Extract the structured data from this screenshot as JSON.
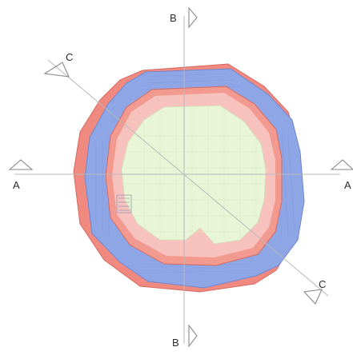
{
  "section_markers": {
    "a_left": "A",
    "a_right": "A",
    "b_top": "B",
    "b_bottom": "B",
    "c_top": "C",
    "c_bottom": "C"
  },
  "colors": {
    "outer_wall": "#f08a80",
    "outer_wall_light": "#f6b0a8",
    "inner_ring": "#8fa6e6",
    "inner_ring_edge": "#6f86cf",
    "floor_pink": "#f7c2bd",
    "floor_green": "#e8f5d6",
    "cut_lines": "#b8b8b8",
    "markers": "#8a8a8a"
  }
}
